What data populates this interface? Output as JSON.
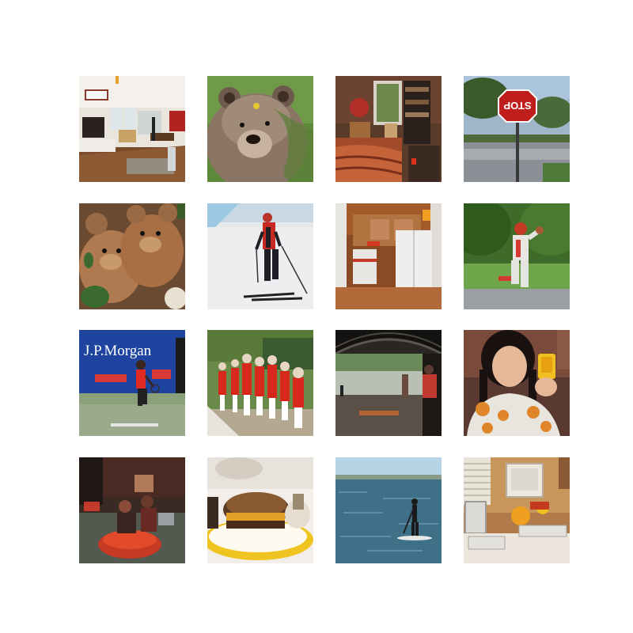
{
  "grid": {
    "rows": 4,
    "columns": 4,
    "tiles": [
      {
        "name": "living-room-photo",
        "subject": "living-room",
        "text": ""
      },
      {
        "name": "brown-bear-photo",
        "subject": "bear",
        "text": ""
      },
      {
        "name": "bedroom-photo",
        "subject": "bedroom",
        "text": ""
      },
      {
        "name": "stop-sign-photo",
        "subject": "stop-sign",
        "text": "STOP"
      },
      {
        "name": "teddy-bears-photo",
        "subject": "teddy-bears",
        "text": ""
      },
      {
        "name": "skier-photo",
        "subject": "skier",
        "text": ""
      },
      {
        "name": "kitchen-photo",
        "subject": "kitchen",
        "text": ""
      },
      {
        "name": "baseball-player-photo",
        "subject": "baseball-player",
        "text": ""
      },
      {
        "name": "tennis-player-photo",
        "subject": "tennis-player",
        "text": "J.P.Morgan"
      },
      {
        "name": "group-of-children-photo",
        "subject": "children-group",
        "text": ""
      },
      {
        "name": "under-bridge-photo",
        "subject": "bridge-river",
        "text": ""
      },
      {
        "name": "woman-with-phone-photo",
        "subject": "woman-phone",
        "text": ""
      },
      {
        "name": "bumper-car-photo",
        "subject": "bumper-car",
        "text": ""
      },
      {
        "name": "sandwich-photo",
        "subject": "sandwich",
        "text": ""
      },
      {
        "name": "paddleboarder-photo",
        "subject": "paddleboard",
        "text": ""
      },
      {
        "name": "computer-desk-photo",
        "subject": "computer-desk",
        "text": ""
      }
    ]
  },
  "colors": {
    "background": "#ffffff",
    "accent_red": "#d8231f",
    "accent_orange": "#f0a020"
  }
}
